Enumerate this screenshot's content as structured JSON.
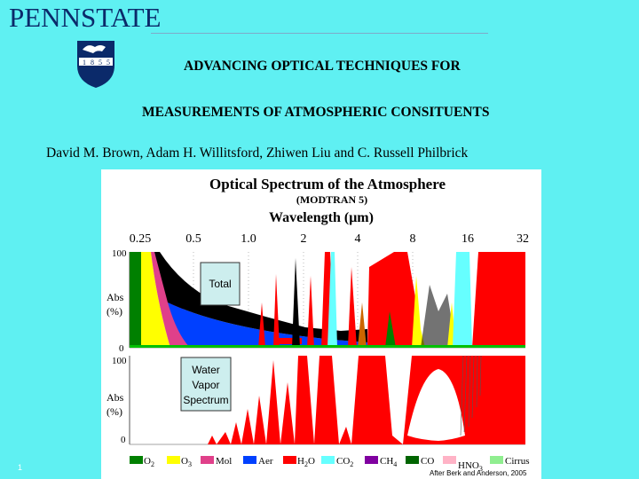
{
  "header": {
    "logo_text": "PENNSTATE",
    "seal_digits": [
      "1",
      "8",
      "5",
      "5"
    ]
  },
  "slide": {
    "title_line1": "ADVANCING OPTICAL TECHNIQUES FOR",
    "title_line2": "MEASUREMENTS OF ATMOSPHERIC CONSITUENTS",
    "authors": "David M. Brown, Adam H. Willitsford, Zhiwen Liu and C. Russell Philbrick",
    "page_number": "1"
  },
  "figure": {
    "title": "Optical Spectrum of the Atmosphere",
    "subtitle": "(MODTRAN 5)",
    "axis_title": "Wavelength (μm)",
    "x_ticks": [
      "0.25",
      "0.5",
      "1.0",
      "2",
      "4",
      "8",
      "16",
      "32"
    ],
    "top_panel": {
      "y_top": "100",
      "y_bottom": "0",
      "y_label_1": "Abs",
      "y_label_2": "(%)",
      "box_label": "Total"
    },
    "bottom_panel": {
      "y_top": "100",
      "y_bottom": "0",
      "y_label_1": "Abs",
      "y_label_2": "(%)",
      "box_line1": "Water",
      "box_line2": "Vapor",
      "box_line3": "Spectrum"
    },
    "credit": "After Berk and Anderson, 2005",
    "legend": [
      {
        "name": "O",
        "sub": "2",
        "color": "#008000"
      },
      {
        "name": "O",
        "sub": "3",
        "color": "#ffff00"
      },
      {
        "name": "Mol",
        "sub": "",
        "color": "#e0408a"
      },
      {
        "name": "Aer",
        "sub": "",
        "color": "#0040ff"
      },
      {
        "name": "H",
        "sub": "2",
        "tail": "O",
        "color": "#ff0000"
      },
      {
        "name": "CO",
        "sub": "2",
        "color": "#66ffff"
      },
      {
        "name": "CH",
        "sub": "4",
        "color": "#8000a0"
      },
      {
        "name": "CO",
        "sub": "",
        "color": "#006400"
      },
      {
        "name": "HNO",
        "sub": "3",
        "color": "#ffb3c6"
      },
      {
        "name": "Cirrus",
        "sub": "",
        "color": "#90ee90"
      }
    ]
  }
}
